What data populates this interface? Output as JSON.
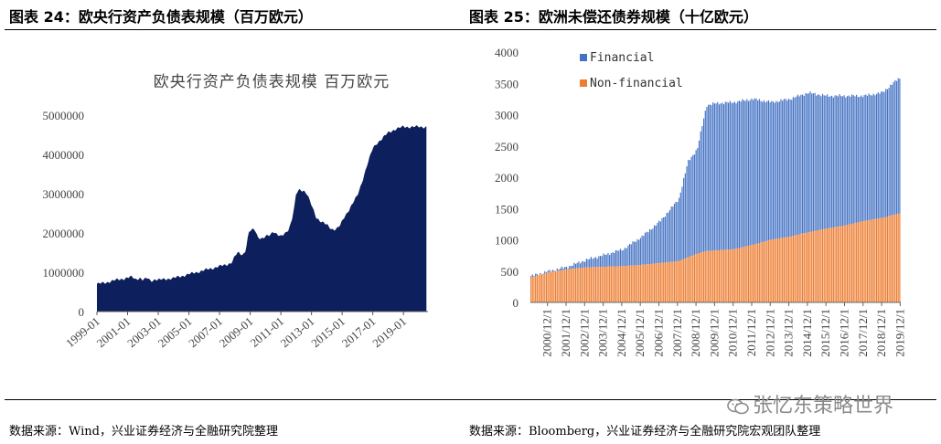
{
  "left": {
    "fig_title": "图表 24：欧央行资产负债表规模（百万欧元）",
    "source": "数据来源：Wind，兴业证券经济与全融研究院整理",
    "chart_data": {
      "type": "area",
      "title": "欧央行资产负债表规模 百万欧元",
      "color": "#0d1f5c",
      "ylim": [
        0,
        5000000
      ],
      "yticks": [
        "0",
        "1000000",
        "2000000",
        "3000000",
        "4000000",
        "5000000"
      ],
      "xlim": [
        1999.0,
        2020.6
      ],
      "xticks": [
        "1999-01",
        "2001-01",
        "2003-01",
        "2005-01",
        "2007-01",
        "2009-01",
        "2011-01",
        "2013-01",
        "2015-01",
        "2017-01",
        "2019-01"
      ],
      "x": [
        1999.0,
        1999.5,
        2000.0,
        2000.5,
        2001.0,
        2001.3,
        2001.5,
        2001.8,
        2002.0,
        2002.3,
        2002.5,
        2002.8,
        2003.0,
        2003.5,
        2004.0,
        2004.5,
        2005.0,
        2005.5,
        2006.0,
        2006.5,
        2007.0,
        2007.5,
        2007.8,
        2008.0,
        2008.2,
        2008.5,
        2008.7,
        2008.9,
        2009.0,
        2009.3,
        2009.5,
        2009.8,
        2010.0,
        2010.3,
        2010.5,
        2010.8,
        2011.0,
        2011.3,
        2011.5,
        2011.7,
        2011.9,
        2012.0,
        2012.2,
        2012.5,
        2012.7,
        2013.0,
        2013.3,
        2013.6,
        2014.0,
        2014.3,
        2014.6,
        2014.9,
        2015.0,
        2015.3,
        2015.6,
        2016.0,
        2016.3,
        2016.6,
        2017.0,
        2017.3,
        2017.6,
        2018.0,
        2018.5,
        2019.0,
        2019.5,
        2020.0,
        2020.5
      ],
      "values": [
        700000,
        730000,
        780000,
        820000,
        860000,
        880000,
        820000,
        860000,
        800000,
        850000,
        780000,
        820000,
        800000,
        830000,
        850000,
        900000,
        950000,
        1000000,
        1050000,
        1100000,
        1150000,
        1200000,
        1250000,
        1400000,
        1500000,
        1450000,
        1550000,
        2000000,
        2050000,
        2100000,
        1900000,
        1850000,
        1900000,
        1950000,
        2050000,
        1950000,
        1900000,
        2000000,
        2100000,
        2300000,
        2700000,
        3000000,
        3100000,
        3080000,
        3000000,
        2700000,
        2400000,
        2300000,
        2200000,
        2100000,
        2100000,
        2200000,
        2300000,
        2500000,
        2700000,
        2950000,
        3300000,
        3700000,
        4150000,
        4300000,
        4400000,
        4550000,
        4650000,
        4700000,
        4700000,
        4700000,
        4700000
      ]
    }
  },
  "right": {
    "fig_title": "图表 25：欧洲未偿还债券规模（十亿欧元）",
    "source": "数据来源：Bloomberg，兴业证券经济与全融研究院宏观团队整理",
    "chart_data": {
      "type": "bar",
      "stacked": true,
      "ylim": [
        0,
        4000
      ],
      "yticks": [
        "0",
        "500",
        "1000",
        "1500",
        "2000",
        "2500",
        "3000",
        "3500",
        "4000"
      ],
      "xticks": [
        "2000/12/1",
        "2001/12/1",
        "2002/12/1",
        "2003/12/1",
        "2004/12/1",
        "2005/12/1",
        "2006/12/1",
        "2007/12/1",
        "2008/12/1",
        "2009/12/1",
        "2010/12/1",
        "2011/12/1",
        "2012/12/1",
        "2013/12/1",
        "2014/12/1",
        "2015/12/1",
        "2016/12/1",
        "2017/12/1",
        "2018/12/1",
        "2019/12/1"
      ],
      "x_anchor_years": [
        2000.0,
        2001.0,
        2002.0,
        2003.0,
        2004.0,
        2005.0,
        2006.0,
        2007.0,
        2008.0,
        2008.5,
        2009.0,
        2009.5,
        2010.0,
        2011.0,
        2012.0,
        2013.0,
        2014.0,
        2015.0,
        2016.0,
        2017.0,
        2018.0,
        2019.0,
        2019.9
      ],
      "series": [
        {
          "name": "Financial",
          "color": "#4472c4",
          "total_anchor_values": [
            420,
            500,
            570,
            680,
            760,
            850,
            1050,
            1300,
            1650,
            2250,
            2450,
            3150,
            3180,
            3200,
            3250,
            3200,
            3250,
            3350,
            3300,
            3300,
            3300,
            3350,
            3580
          ]
        },
        {
          "name": "Non-financial",
          "color": "#ed7d31",
          "anchor_values": [
            400,
            480,
            530,
            560,
            570,
            580,
            600,
            630,
            660,
            720,
            780,
            820,
            830,
            850,
            920,
            1000,
            1050,
            1120,
            1180,
            1230,
            1300,
            1350,
            1420
          ]
        }
      ],
      "legend": [
        "Financial",
        "Non-financial"
      ]
    }
  },
  "watermark": "张忆东策略世界",
  "watermark_icon": "wechat-icon"
}
